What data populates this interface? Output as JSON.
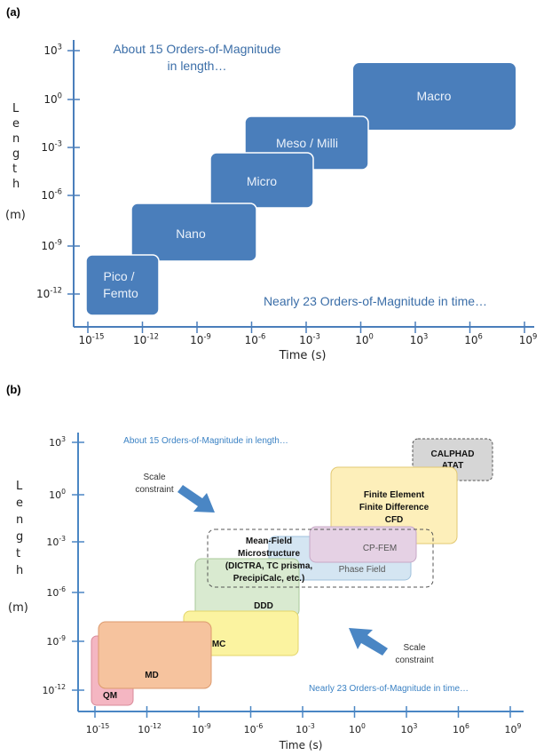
{
  "panel_a": {
    "label": "(a)",
    "ylabel_letters": [
      "L",
      "e",
      "n",
      "g",
      "t",
      "h"
    ],
    "ylabel_unit": "(m)",
    "xlabel": "Time (s)",
    "y_ticks": [
      {
        "base": "10",
        "exp": "3"
      },
      {
        "base": "10",
        "exp": "0"
      },
      {
        "base": "10",
        "exp": "-3"
      },
      {
        "base": "10",
        "exp": "-6"
      },
      {
        "base": "10",
        "exp": "-9"
      },
      {
        "base": "10",
        "exp": "-12"
      }
    ],
    "x_ticks": [
      {
        "base": "10",
        "exp": "-15"
      },
      {
        "base": "10",
        "exp": "-12"
      },
      {
        "base": "10",
        "exp": "-9"
      },
      {
        "base": "10",
        "exp": "-6"
      },
      {
        "base": "10",
        "exp": "-3"
      },
      {
        "base": "10",
        "exp": "0"
      },
      {
        "base": "10",
        "exp": "3"
      },
      {
        "base": "10",
        "exp": "6"
      },
      {
        "base": "10",
        "exp": "9"
      }
    ],
    "note_top": [
      "About 15 Orders-of-Magnitude",
      "in length…"
    ],
    "note_bottom": "Nearly 23 Orders-of-Magnitude in time…",
    "boxes": [
      {
        "lines": [
          "Pico /",
          "Femto"
        ]
      },
      {
        "lines": [
          "Nano"
        ]
      },
      {
        "lines": [
          "Micro"
        ]
      },
      {
        "lines": [
          "Meso / Milli"
        ]
      },
      {
        "lines": [
          "Macro"
        ]
      }
    ],
    "box_color": "#4a7ebb",
    "note_color": "#3b6ea8"
  },
  "panel_b": {
    "label": "(b)",
    "ylabel_letters": [
      "L",
      "e",
      "n",
      "g",
      "t",
      "h"
    ],
    "ylabel_unit": "(m)",
    "xlabel": "Time (s)",
    "note_top": "About 15 Orders-of-Magnitude in length…",
    "note_bottom": "Nearly 23 Orders-of-Magnitude in time…",
    "scale_constraint_1": [
      "Scale",
      "constraint"
    ],
    "scale_constraint_2": [
      "Scale",
      "constraint"
    ],
    "boxes": {
      "qm": "QM",
      "md": "MD",
      "kmc": "KMC",
      "ddd": "DDD",
      "phase_field": "Phase Field",
      "cp_fem": "CP-FEM",
      "mean_field": [
        "Mean-Field",
        "Microstructure",
        "(DICTRA, TC prisma,",
        "PrecipiCalc, etc.)"
      ],
      "finite": [
        "Finite Element",
        "Finite Difference",
        "CFD"
      ],
      "calphad": [
        "CALPHAD",
        "ATAT"
      ]
    },
    "colors": {
      "qm": "#f4b6c2",
      "md": "#f6c39e",
      "kmc": "#fbf3a0",
      "ddd": "#d9ead0",
      "phase_field": "#d4e5f2",
      "cp_fem": "#e5d1e4",
      "finite": "#fdefba",
      "calphad": "#d6d6d6",
      "arrow": "#4a86c4",
      "note": "#3b82c4"
    }
  }
}
